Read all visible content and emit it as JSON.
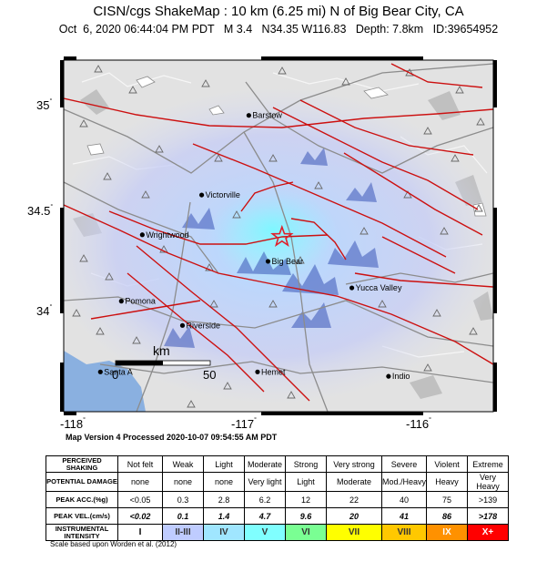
{
  "title": "CISN/cgs ShakeMap : 10 km (6.25 mi) N of Big Bear City, CA",
  "subtitle": "Oct  6, 2020 06:44:04 PM PDT   M 3.4   N34.35 W116.83   Depth: 7.8km   ID:39654952",
  "map": {
    "lat_ticks": [
      "35",
      "34.5",
      "34"
    ],
    "lon_ticks": [
      "-118",
      "-117",
      "-116"
    ],
    "extent": {
      "lon_min": -118.08,
      "lon_max": -115.62,
      "lat_min": 33.56,
      "lat_max": 35.15
    },
    "epicenter": {
      "lon": -116.83,
      "lat": 34.35,
      "color": "#e0202a"
    },
    "cities": [
      {
        "name": "Barstow",
        "lon": -117.02,
        "lat": 34.9
      },
      {
        "name": "Victorville",
        "lon": -117.29,
        "lat": 34.54
      },
      {
        "name": "Wrightwood",
        "lon": -117.63,
        "lat": 34.36
      },
      {
        "name": "Big Bear",
        "lon": -116.91,
        "lat": 34.24
      },
      {
        "name": "Yucca Valley",
        "lon": -116.43,
        "lat": 34.12
      },
      {
        "name": "Pomona",
        "lon": -117.75,
        "lat": 34.06
      },
      {
        "name": "Riverside",
        "lon": -117.4,
        "lat": 33.95
      },
      {
        "name": "Santa A",
        "lon": -117.87,
        "lat": 33.74
      },
      {
        "name": "Hemet",
        "lon": -116.97,
        "lat": 33.74
      },
      {
        "name": "Indio",
        "lon": -116.22,
        "lat": 33.72
      }
    ],
    "scale_bar": {
      "unit": "km",
      "start": "0",
      "end": "50"
    }
  },
  "processed": "Map Version 4 Processed 2020-10-07 09:54:55 AM PDT",
  "legend": {
    "rows": [
      {
        "label": "PERCEIVED SHAKING",
        "values": [
          "Not felt",
          "Weak",
          "Light",
          "Moderate",
          "Strong",
          "Very strong",
          "Severe",
          "Violent",
          "Extreme"
        ]
      },
      {
        "label": "POTENTIAL DAMAGE",
        "values": [
          "none",
          "none",
          "none",
          "Very light",
          "Light",
          "Moderate",
          "Mod./Heavy",
          "Heavy",
          "Very Heavy"
        ]
      },
      {
        "label": "PEAK ACC.(%g)",
        "values": [
          "<0.05",
          "0.3",
          "2.8",
          "6.2",
          "12",
          "22",
          "40",
          "75",
          ">139"
        ]
      },
      {
        "label": "PEAK VEL.(cm/s)",
        "values": [
          "<0.02",
          "0.1",
          "1.4",
          "4.7",
          "9.6",
          "20",
          "41",
          "86",
          ">178"
        ]
      },
      {
        "label": "INSTRUMENTAL INTENSITY",
        "values": [
          "I",
          "II-III",
          "IV",
          "V",
          "VI",
          "VII",
          "VIII",
          "IX",
          "X+"
        ]
      }
    ],
    "intensity_colors": [
      "#ffffff",
      "#bfccff",
      "#a0e6ff",
      "#80ffff",
      "#7aff93",
      "#ffff00",
      "#ffc800",
      "#ff9100",
      "#ff0000"
    ],
    "scale_note": "Scale based upon Worden et al. (2012)"
  }
}
